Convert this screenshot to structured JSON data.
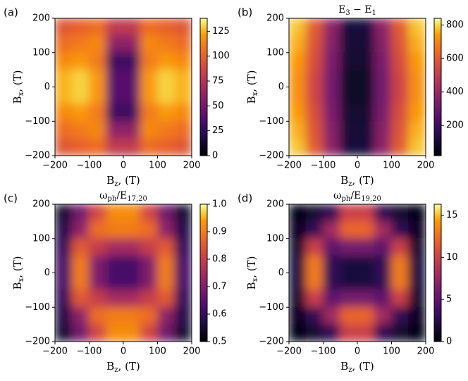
{
  "chart_data": [
    {
      "type": "heatmap",
      "label": "(a)",
      "colormap": "inferno",
      "x": [
        -175,
        -125,
        -75,
        -25,
        25,
        75,
        125,
        175
      ],
      "y": [
        175,
        125,
        75,
        25,
        -25,
        -75,
        -125,
        -175
      ],
      "z": [
        [
          95,
          100,
          105,
          80,
          80,
          105,
          100,
          95
        ],
        [
          105,
          110,
          115,
          60,
          60,
          115,
          110,
          105
        ],
        [
          115,
          120,
          110,
          30,
          30,
          110,
          120,
          115
        ],
        [
          125,
          130,
          120,
          40,
          40,
          120,
          130,
          125
        ],
        [
          125,
          130,
          120,
          40,
          40,
          120,
          130,
          125
        ],
        [
          115,
          120,
          110,
          30,
          30,
          110,
          120,
          115
        ],
        [
          105,
          110,
          115,
          60,
          60,
          115,
          110,
          105
        ],
        [
          95,
          100,
          105,
          80,
          80,
          105,
          100,
          95
        ]
      ],
      "xlim": [
        -200,
        200
      ],
      "ylim": [
        -200,
        200
      ],
      "xticks": [
        {
          "value": -200,
          "label": "−200"
        },
        {
          "value": -100,
          "label": "−100"
        },
        0,
        100,
        200
      ],
      "yticks": [
        {
          "value": -200,
          "label": "−200"
        },
        {
          "value": -100,
          "label": "−100"
        },
        0,
        100,
        200
      ],
      "clim": [
        0,
        138
      ],
      "cticks": [
        0,
        25,
        50,
        75,
        100,
        125
      ],
      "xlabel": [
        {
          "text": "B"
        },
        {
          "text": "z",
          "sub": true
        },
        {
          "text": ", (T)"
        }
      ],
      "ylabel": [
        {
          "text": "B"
        },
        {
          "text": "x",
          "sub": true
        },
        {
          "text": ", (T)"
        }
      ]
    },
    {
      "type": "heatmap",
      "label": "(b)",
      "colormap": "inferno",
      "title": [
        {
          "text": "E"
        },
        {
          "text": "3",
          "sub": true
        },
        {
          "text": " − E"
        },
        {
          "text": "1",
          "sub": true
        }
      ],
      "x": [
        -175,
        -125,
        -75,
        -25,
        25,
        75,
        125,
        175
      ],
      "y": [
        175,
        125,
        75,
        25,
        -25,
        -75,
        -125,
        -175
      ],
      "z": [
        [
          780,
          600,
          380,
          120,
          120,
          380,
          600,
          780
        ],
        [
          760,
          580,
          360,
          110,
          110,
          360,
          580,
          760
        ],
        [
          740,
          560,
          340,
          100,
          100,
          340,
          560,
          740
        ],
        [
          720,
          540,
          320,
          80,
          80,
          320,
          540,
          720
        ],
        [
          720,
          540,
          320,
          80,
          80,
          320,
          540,
          720
        ],
        [
          740,
          560,
          340,
          100,
          100,
          340,
          560,
          740
        ],
        [
          760,
          580,
          360,
          110,
          110,
          360,
          580,
          760
        ],
        [
          780,
          600,
          380,
          120,
          120,
          380,
          600,
          780
        ]
      ],
      "xlim": [
        -200,
        200
      ],
      "ylim": [
        -200,
        200
      ],
      "xticks": [
        {
          "value": -200,
          "label": "−200"
        },
        {
          "value": -100,
          "label": "−100"
        },
        0,
        100,
        200
      ],
      "yticks": [
        {
          "value": -200,
          "label": "−200"
        },
        {
          "value": -100,
          "label": "−100"
        },
        0,
        100,
        200
      ],
      "clim": [
        20,
        840
      ],
      "cticks": [
        200,
        400,
        600,
        800
      ],
      "xlabel": [
        {
          "text": "B"
        },
        {
          "text": "z",
          "sub": true
        },
        {
          "text": ", (T)"
        }
      ],
      "ylabel": [
        {
          "text": "B"
        },
        {
          "text": "x",
          "sub": true
        },
        {
          "text": ", (T)"
        }
      ]
    },
    {
      "type": "heatmap",
      "label": "(c)",
      "colormap": "inferno",
      "title": [
        {
          "text": "ω"
        },
        {
          "text": "ph",
          "sub": true
        },
        {
          "text": "/E"
        },
        {
          "text": "17,20",
          "sub": true
        }
      ],
      "x": [
        -175,
        -125,
        -75,
        -25,
        25,
        75,
        125,
        175
      ],
      "y": [
        175,
        125,
        75,
        25,
        -25,
        -75,
        -125,
        -175
      ],
      "z": [
        [
          0.55,
          0.68,
          0.82,
          0.92,
          0.92,
          0.82,
          0.68,
          0.55
        ],
        [
          0.58,
          0.72,
          0.88,
          0.9,
          0.9,
          0.88,
          0.72,
          0.58
        ],
        [
          0.6,
          0.85,
          0.8,
          0.75,
          0.75,
          0.8,
          0.85,
          0.6
        ],
        [
          0.62,
          0.9,
          0.7,
          0.62,
          0.62,
          0.7,
          0.9,
          0.62
        ],
        [
          0.62,
          0.9,
          0.7,
          0.62,
          0.62,
          0.7,
          0.9,
          0.62
        ],
        [
          0.6,
          0.85,
          0.8,
          0.75,
          0.75,
          0.8,
          0.85,
          0.6
        ],
        [
          0.58,
          0.72,
          0.88,
          0.9,
          0.9,
          0.88,
          0.72,
          0.58
        ],
        [
          0.55,
          0.68,
          0.82,
          0.92,
          0.92,
          0.82,
          0.68,
          0.55
        ]
      ],
      "xlim": [
        -200,
        200
      ],
      "ylim": [
        -200,
        200
      ],
      "xticks": [
        {
          "value": -200,
          "label": "−200"
        },
        {
          "value": -100,
          "label": "−100"
        },
        0,
        100,
        200
      ],
      "yticks": [
        {
          "value": -200,
          "label": "−200"
        },
        {
          "value": -100,
          "label": "−100"
        },
        0,
        100,
        200
      ],
      "clim": [
        0.5,
        1.0
      ],
      "cticks": [
        0.5,
        0.6,
        0.7,
        0.8,
        0.9,
        {
          "value": 1.0,
          "label": "1.0"
        }
      ],
      "xlabel": [
        {
          "text": "B"
        },
        {
          "text": "z",
          "sub": true
        },
        {
          "text": ", (T)"
        }
      ],
      "ylabel": [
        {
          "text": "B"
        },
        {
          "text": "x",
          "sub": true
        },
        {
          "text": ", (T)"
        }
      ]
    },
    {
      "type": "heatmap",
      "label": "(d)",
      "colormap": "inferno",
      "title": [
        {
          "text": "ω"
        },
        {
          "text": "ph",
          "sub": true
        },
        {
          "text": "/E"
        },
        {
          "text": "19,20",
          "sub": true
        }
      ],
      "x": [
        -175,
        -125,
        -75,
        -25,
        25,
        75,
        125,
        175
      ],
      "y": [
        175,
        125,
        75,
        25,
        -25,
        -75,
        -125,
        -175
      ],
      "z": [
        [
          0.5,
          1.5,
          3,
          10,
          10,
          3,
          1.5,
          0.5
        ],
        [
          1,
          3,
          8,
          12,
          12,
          8,
          3,
          1
        ],
        [
          1.5,
          10,
          5,
          6,
          6,
          5,
          10,
          1.5
        ],
        [
          2,
          13,
          3,
          2,
          2,
          3,
          13,
          2
        ],
        [
          2,
          13,
          3,
          2,
          2,
          3,
          13,
          2
        ],
        [
          1.5,
          10,
          5,
          6,
          6,
          5,
          10,
          1.5
        ],
        [
          1,
          3,
          8,
          12,
          12,
          8,
          3,
          1
        ],
        [
          0.5,
          1.5,
          3,
          10,
          10,
          3,
          1.5,
          0.5
        ]
      ],
      "xlim": [
        -200,
        200
      ],
      "ylim": [
        -200,
        200
      ],
      "xticks": [
        {
          "value": -200,
          "label": "−200"
        },
        {
          "value": -100,
          "label": "−100"
        },
        0,
        100,
        200
      ],
      "yticks": [
        {
          "value": -200,
          "label": "−200"
        },
        {
          "value": -100,
          "label": "−100"
        },
        0,
        100,
        200
      ],
      "clim": [
        0,
        16.3
      ],
      "cticks": [
        0,
        5,
        10,
        15
      ],
      "xlabel": [
        {
          "text": "B"
        },
        {
          "text": "z",
          "sub": true
        },
        {
          "text": ", (T)"
        }
      ],
      "ylabel": [
        {
          "text": "B"
        },
        {
          "text": "x",
          "sub": true
        },
        {
          "text": ", (T)"
        }
      ]
    }
  ]
}
